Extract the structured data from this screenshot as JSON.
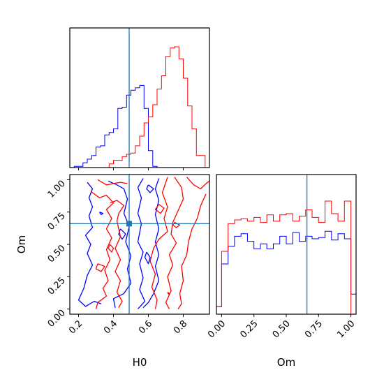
{
  "chart_data": {
    "type": "corner",
    "parameters": [
      "H0",
      "Om"
    ],
    "truth": {
      "H0": 0.49,
      "Om": 0.66
    },
    "colors": {
      "blue": "#0000ff",
      "red": "#ff0000",
      "truth": "#1f77b4"
    },
    "panels": [
      {
        "id": "hist_H0",
        "type": "step-histogram",
        "xlim": [
          0.15,
          0.95
        ],
        "bin_edges": [
          0.15,
          0.175,
          0.2,
          0.225,
          0.25,
          0.275,
          0.3,
          0.325,
          0.35,
          0.375,
          0.4,
          0.425,
          0.45,
          0.475,
          0.5,
          0.525,
          0.55,
          0.575,
          0.6,
          0.625,
          0.65,
          0.675,
          0.7,
          0.725,
          0.75,
          0.775,
          0.8,
          0.825,
          0.85,
          0.875,
          0.9,
          0.925,
          0.95
        ],
        "series": [
          {
            "color": "blue",
            "values": [
              0.0,
              0.01,
              0.01,
              0.04,
              0.07,
              0.1,
              0.17,
              0.18,
              0.27,
              0.29,
              0.32,
              0.49,
              0.5,
              0.6,
              0.64,
              0.66,
              0.68,
              0.49,
              0.14,
              0.01,
              0.0,
              0.0,
              0.0,
              0.0,
              0.0,
              0.0,
              0.0,
              0.0,
              0.0,
              0.0,
              0.0,
              0.0
            ]
          },
          {
            "color": "red",
            "values": [
              0.0,
              0.0,
              0.0,
              0.0,
              0.0,
              0.0,
              0.0,
              0.0,
              0.0,
              0.03,
              0.06,
              0.06,
              0.09,
              0.11,
              0.12,
              0.18,
              0.26,
              0.37,
              0.42,
              0.52,
              0.65,
              0.76,
              0.92,
              0.99,
              1.0,
              0.9,
              0.74,
              0.51,
              0.32,
              0.1,
              0.1,
              0.0
            ]
          }
        ],
        "xticks": [
          0.2,
          0.4,
          0.6,
          0.8
        ]
      },
      {
        "id": "hist_Om",
        "type": "step-histogram",
        "xlim": [
          -0.04,
          1.04
        ],
        "bin_edges": [
          -0.04,
          0.0,
          0.05,
          0.1,
          0.15,
          0.2,
          0.25,
          0.3,
          0.35,
          0.4,
          0.45,
          0.5,
          0.55,
          0.6,
          0.65,
          0.7,
          0.75,
          0.8,
          0.85,
          0.9,
          0.95,
          1.0,
          1.04
        ],
        "series": [
          {
            "color": "blue",
            "values": [
              0.06,
              0.4,
              0.54,
              0.62,
              0.64,
              0.58,
              0.52,
              0.56,
              0.52,
              0.56,
              0.62,
              0.56,
              0.65,
              0.58,
              0.62,
              0.6,
              0.61,
              0.66,
              0.59,
              0.64,
              0.6,
              0.16
            ]
          },
          {
            "color": "red",
            "values": [
              0.06,
              0.5,
              0.72,
              0.75,
              0.76,
              0.74,
              0.77,
              0.73,
              0.79,
              0.74,
              0.79,
              0.8,
              0.74,
              0.78,
              0.83,
              0.77,
              0.73,
              0.9,
              0.8,
              0.74,
              0.9,
              0.0
            ]
          }
        ],
        "xlabel": "Om",
        "xticks": [
          0.0,
          0.25,
          0.5,
          0.75,
          1.0
        ],
        "xticklabels": [
          "0.00",
          "0.25",
          "0.50",
          "0.75",
          "1.00"
        ]
      },
      {
        "id": "contour_H0_Om",
        "type": "contour",
        "xlim": [
          0.15,
          0.95
        ],
        "ylim": [
          -0.04,
          1.04
        ],
        "xlabel": "H0",
        "ylabel": "Om",
        "xticks": [
          0.2,
          0.4,
          0.6,
          0.8
        ],
        "xticklabels": [
          "0.2",
          "0.4",
          "0.6",
          "0.8"
        ],
        "yticks": [
          0.0,
          0.25,
          0.5,
          0.75,
          1.0
        ],
        "yticklabels": [
          "0.00",
          "0.25",
          "0.50",
          "0.75",
          "1.00"
        ],
        "contours": [
          {
            "color": "blue",
            "points": [
              [
                0.25,
                0.98
              ],
              [
                0.28,
                0.93
              ],
              [
                0.26,
                0.86
              ],
              [
                0.28,
                0.79
              ],
              [
                0.26,
                0.72
              ],
              [
                0.28,
                0.63
              ],
              [
                0.24,
                0.57
              ],
              [
                0.27,
                0.5
              ],
              [
                0.25,
                0.43
              ],
              [
                0.28,
                0.34
              ],
              [
                0.25,
                0.26
              ],
              [
                0.23,
                0.16
              ],
              [
                0.2,
                0.07
              ],
              [
                0.24,
                0.02
              ],
              [
                0.29,
                0.06
              ],
              [
                0.33,
                0.04
              ]
            ]
          },
          {
            "color": "blue",
            "points": [
              [
                0.37,
                0.99
              ],
              [
                0.42,
                0.96
              ],
              [
                0.46,
                0.93
              ],
              [
                0.48,
                0.85
              ],
              [
                0.46,
                0.74
              ],
              [
                0.49,
                0.64
              ],
              [
                0.47,
                0.52
              ],
              [
                0.5,
                0.41
              ],
              [
                0.48,
                0.31
              ],
              [
                0.5,
                0.2
              ],
              [
                0.46,
                0.12
              ],
              [
                0.4,
                0.08
              ],
              [
                0.41,
                0.01
              ]
            ]
          },
          {
            "color": "blue",
            "points": [
              [
                0.57,
                1.01
              ],
              [
                0.54,
                0.94
              ],
              [
                0.56,
                0.86
              ],
              [
                0.54,
                0.74
              ],
              [
                0.56,
                0.66
              ],
              [
                0.54,
                0.52
              ],
              [
                0.57,
                0.44
              ],
              [
                0.55,
                0.35
              ],
              [
                0.57,
                0.24
              ],
              [
                0.55,
                0.15
              ],
              [
                0.58,
                0.06
              ],
              [
                0.54,
                0.0
              ]
            ]
          },
          {
            "color": "blue",
            "points": [
              [
                0.66,
                1.01
              ],
              [
                0.64,
                0.93
              ],
              [
                0.66,
                0.84
              ],
              [
                0.64,
                0.73
              ],
              [
                0.66,
                0.62
              ],
              [
                0.64,
                0.52
              ],
              [
                0.66,
                0.42
              ],
              [
                0.64,
                0.33
              ],
              [
                0.66,
                0.22
              ],
              [
                0.63,
                0.12
              ],
              [
                0.6,
                0.05
              ],
              [
                0.57,
                0.01
              ]
            ]
          },
          {
            "color": "blue",
            "points": [
              [
                0.6,
                0.96
              ],
              [
                0.63,
                0.93
              ],
              [
                0.61,
                0.9
              ],
              [
                0.59,
                0.93
              ],
              [
                0.6,
                0.96
              ]
            ]
          },
          {
            "color": "blue",
            "points": [
              [
                0.44,
                0.62
              ],
              [
                0.47,
                0.58
              ],
              [
                0.45,
                0.54
              ],
              [
                0.43,
                0.58
              ],
              [
                0.44,
                0.62
              ]
            ]
          },
          {
            "color": "blue",
            "points": [
              [
                0.59,
                0.44
              ],
              [
                0.61,
                0.4
              ],
              [
                0.6,
                0.35
              ],
              [
                0.58,
                0.4
              ],
              [
                0.59,
                0.44
              ]
            ]
          },
          {
            "color": "blue",
            "points": [
              [
                0.32,
                0.75
              ],
              [
                0.34,
                0.74
              ],
              [
                0.33,
                0.73
              ],
              [
                0.32,
                0.75
              ]
            ]
          },
          {
            "color": "red",
            "points": [
              [
                0.31,
                1.0
              ],
              [
                0.36,
                0.96
              ],
              [
                0.44,
                0.98
              ],
              [
                0.48,
                0.97
              ]
            ]
          },
          {
            "color": "red",
            "points": [
              [
                0.27,
                0.91
              ],
              [
                0.32,
                0.86
              ],
              [
                0.36,
                0.88
              ],
              [
                0.4,
                0.82
              ],
              [
                0.36,
                0.77
              ],
              [
                0.39,
                0.7
              ],
              [
                0.36,
                0.62
              ],
              [
                0.39,
                0.55
              ],
              [
                0.36,
                0.46
              ],
              [
                0.38,
                0.38
              ],
              [
                0.35,
                0.3
              ],
              [
                0.37,
                0.22
              ],
              [
                0.34,
                0.16
              ],
              [
                0.36,
                0.1
              ],
              [
                0.31,
                0.05
              ],
              [
                0.3,
                0.0
              ]
            ]
          },
          {
            "color": "red",
            "points": [
              [
                0.38,
                0.82
              ],
              [
                0.42,
                0.84
              ],
              [
                0.46,
                0.8
              ],
              [
                0.43,
                0.74
              ],
              [
                0.42,
                0.68
              ],
              [
                0.44,
                0.56
              ],
              [
                0.41,
                0.47
              ],
              [
                0.44,
                0.38
              ],
              [
                0.41,
                0.29
              ],
              [
                0.44,
                0.22
              ],
              [
                0.42,
                0.13
              ],
              [
                0.45,
                0.06
              ],
              [
                0.43,
                0.01
              ]
            ]
          },
          {
            "color": "red",
            "points": [
              [
                0.71,
                1.02
              ],
              [
                0.68,
                0.9
              ],
              [
                0.71,
                0.79
              ],
              [
                0.69,
                0.7
              ],
              [
                0.71,
                0.6
              ],
              [
                0.66,
                0.54
              ],
              [
                0.63,
                0.47
              ],
              [
                0.61,
                0.37
              ],
              [
                0.64,
                0.27
              ],
              [
                0.62,
                0.17
              ],
              [
                0.65,
                0.07
              ],
              [
                0.64,
                0.0
              ]
            ]
          },
          {
            "color": "red",
            "points": [
              [
                0.75,
                1.02
              ],
              [
                0.79,
                0.94
              ],
              [
                0.8,
                0.85
              ],
              [
                0.77,
                0.76
              ],
              [
                0.74,
                0.67
              ],
              [
                0.73,
                0.58
              ],
              [
                0.76,
                0.51
              ],
              [
                0.72,
                0.42
              ],
              [
                0.74,
                0.34
              ],
              [
                0.71,
                0.25
              ],
              [
                0.73,
                0.14
              ],
              [
                0.7,
                0.05
              ],
              [
                0.72,
                0.0
              ]
            ]
          },
          {
            "color": "red",
            "points": [
              [
                0.82,
                1.02
              ],
              [
                0.86,
                0.96
              ],
              [
                0.9,
                0.93
              ],
              [
                0.93,
                0.97
              ],
              [
                0.95,
                0.99
              ]
            ]
          },
          {
            "color": "red",
            "points": [
              [
                0.93,
                0.89
              ],
              [
                0.9,
                0.8
              ],
              [
                0.88,
                0.7
              ],
              [
                0.85,
                0.62
              ],
              [
                0.83,
                0.52
              ],
              [
                0.82,
                0.42
              ],
              [
                0.79,
                0.33
              ],
              [
                0.8,
                0.22
              ],
              [
                0.78,
                0.12
              ],
              [
                0.79,
                0.04
              ],
              [
                0.77,
                0.0
              ]
            ]
          },
          {
            "color": "red",
            "points": [
              [
                0.66,
                0.81
              ],
              [
                0.69,
                0.78
              ],
              [
                0.67,
                0.74
              ],
              [
                0.64,
                0.77
              ],
              [
                0.66,
                0.81
              ]
            ]
          },
          {
            "color": "red",
            "points": [
              [
                0.31,
                0.35
              ],
              [
                0.35,
                0.33
              ],
              [
                0.33,
                0.29
              ],
              [
                0.3,
                0.31
              ],
              [
                0.31,
                0.35
              ]
            ]
          },
          {
            "color": "red",
            "points": [
              [
                0.38,
                0.5
              ],
              [
                0.4,
                0.47
              ],
              [
                0.39,
                0.44
              ],
              [
                0.37,
                0.47
              ],
              [
                0.38,
                0.5
              ]
            ]
          },
          {
            "color": "red",
            "points": [
              [
                0.75,
                0.67
              ],
              [
                0.78,
                0.65
              ],
              [
                0.76,
                0.63
              ],
              [
                0.74,
                0.65
              ],
              [
                0.75,
                0.67
              ]
            ]
          },
          {
            "color": "red",
            "points": [
              [
                0.71,
                0.13
              ],
              [
                0.72,
                0.12
              ],
              [
                0.715,
                0.115
              ],
              [
                0.71,
                0.13
              ]
            ]
          }
        ]
      }
    ]
  }
}
